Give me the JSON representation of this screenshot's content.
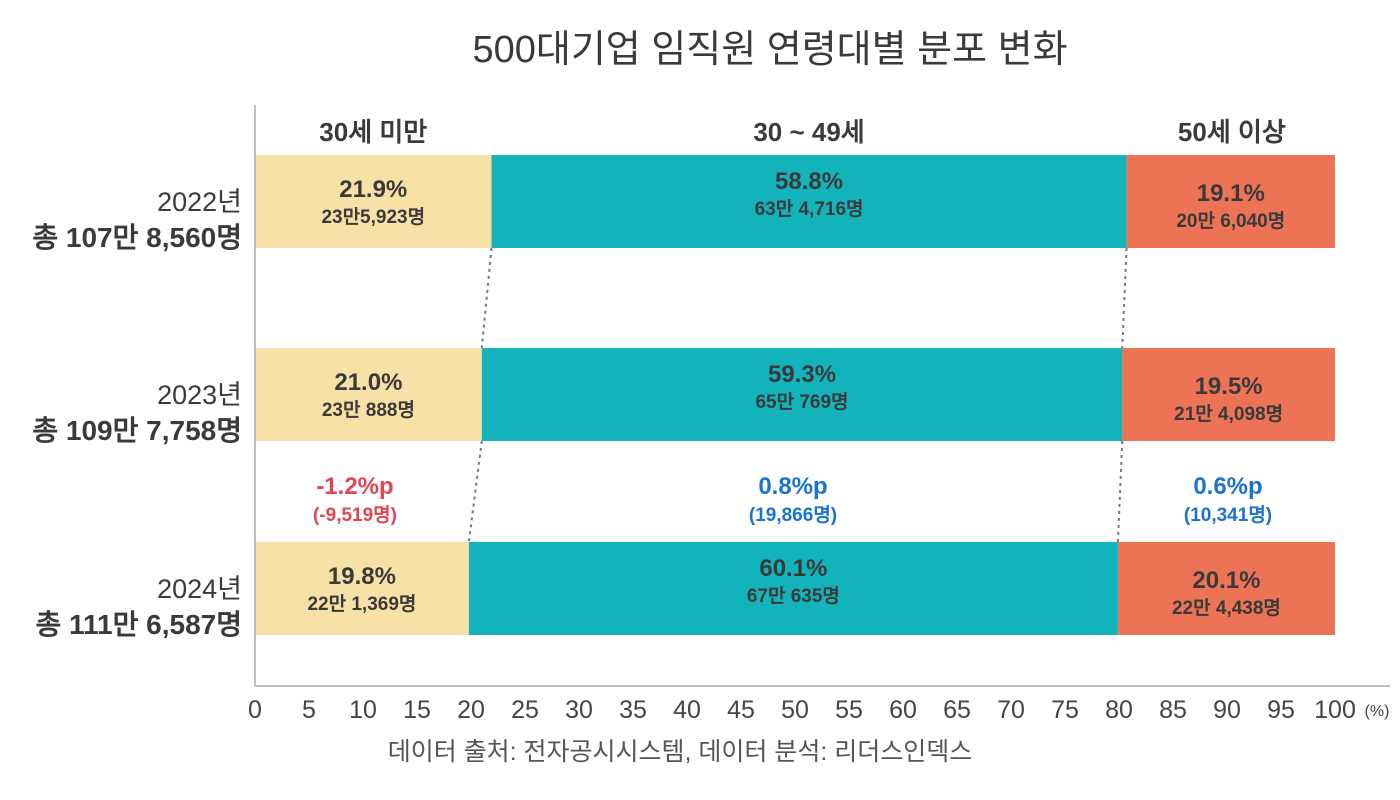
{
  "chart_data": {
    "type": "bar",
    "stacked": true,
    "orientation": "horizontal",
    "title": "500대기업 임직원 연령대별 분포 변화",
    "source": "데이터 출처: 전자공시시스템, 데이터 분석: 리더스인덱스",
    "x_unit": "(%)",
    "xlim": [
      0,
      100
    ],
    "x_ticks": [
      "0",
      "5",
      "10",
      "15",
      "20",
      "25",
      "30",
      "35",
      "40",
      "45",
      "50",
      "55",
      "60",
      "65",
      "70",
      "75",
      "80",
      "85",
      "90",
      "95",
      "100"
    ],
    "grid": false,
    "categories": [
      {
        "year": "2022년",
        "total": "총 107만 8,560명"
      },
      {
        "year": "2023년",
        "total": "총 109만 7,758명"
      },
      {
        "year": "2024년",
        "total": "총 111만 6,587명"
      }
    ],
    "series": [
      {
        "name": "30세 미만",
        "color": "#f7e1a6",
        "values": [
          21.9,
          21.0,
          19.8
        ],
        "value_labels": [
          "21.9%",
          "21.0%",
          "19.8%"
        ],
        "count_labels": [
          "23만5,923명",
          "23만 888명",
          "22만 1,369명"
        ]
      },
      {
        "name": "30 ~ 49세",
        "color": "#12b3bb",
        "values": [
          58.8,
          59.3,
          60.1
        ],
        "value_labels": [
          "58.8%",
          "59.3%",
          "60.1%"
        ],
        "count_labels": [
          "63만 4,716명",
          "65만 769명",
          "67만 635명"
        ]
      },
      {
        "name": "50세 이상",
        "color": "#ec7356",
        "values": [
          19.1,
          19.5,
          20.1
        ],
        "value_labels": [
          "19.1%",
          "19.5%",
          "20.1%"
        ],
        "count_labels": [
          "20만 6,040명",
          "21만 4,098명",
          "22만 4,438명"
        ]
      }
    ],
    "annotations": [
      {
        "series": "30세 미만",
        "change": "-1.2%p",
        "count": "(-9,519명)",
        "color": "#e0464f"
      },
      {
        "series": "30 ~ 49세",
        "change": "0.8%p",
        "count": "(19,866명)",
        "color": "#1a73d0"
      },
      {
        "series": "50세 이상",
        "change": "0.6%p",
        "count": "(10,341명)",
        "color": "#1a73d0"
      }
    ]
  }
}
